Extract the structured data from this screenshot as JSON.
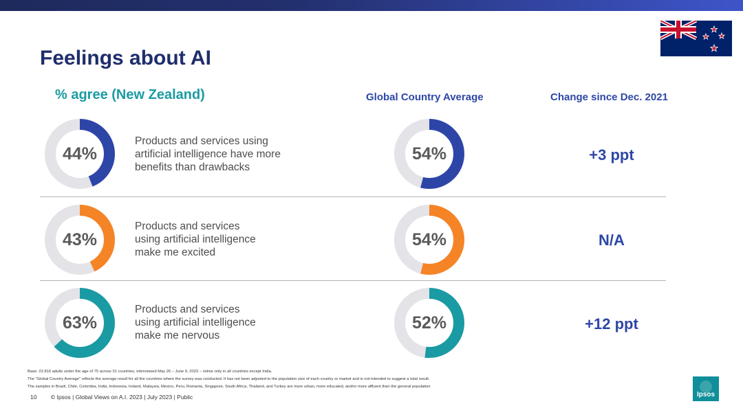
{
  "header": {
    "title": "Feelings about AI",
    "col_nz": "% agree (New Zealand)",
    "col_global": "Global Country Average",
    "col_change": "Change since Dec. 2021"
  },
  "chart_data": {
    "type": "donut",
    "title": "Feelings about AI",
    "categories": [
      "Products and services using artificial intelligence have more benefits than drawbacks",
      "Products and services using artificial intelligence make me excited",
      "Products and services using artificial intelligence make me nervous"
    ],
    "series": [
      {
        "name": "% agree (New Zealand)",
        "values": [
          44,
          43,
          63
        ]
      },
      {
        "name": "Global Country Average",
        "values": [
          54,
          54,
          52
        ]
      }
    ],
    "change_since_dec_2021": [
      "+3 ppt",
      "N/A",
      "+12 ppt"
    ],
    "ylim": [
      0,
      100
    ]
  },
  "rows": [
    {
      "nz_label": "44%",
      "global_label": "54%",
      "lines": [
        "Products and services using",
        "artificial intelligence have more",
        "benefits than drawbacks"
      ],
      "change": "+3 ppt",
      "color": "#2e45a8"
    },
    {
      "nz_label": "43%",
      "global_label": "54%",
      "lines": [
        "Products and services",
        "using artificial intelligence",
        "make me excited"
      ],
      "change": "N/A",
      "color": "#f58426"
    },
    {
      "nz_label": "63%",
      "global_label": "52%",
      "lines": [
        "Products and services",
        "using artificial intelligence",
        "make me nervous"
      ],
      "change": "+12 ppt",
      "color": "#1a9ba3"
    }
  ],
  "colors": {
    "track": "#e3e3e8",
    "title": "#1f2d6b",
    "accent_teal": "#1a9ba3",
    "accent_blue": "#2d47a6"
  },
  "footnotes": [
    "Base: 22,816 adults under the age of 75 across 31 countries, interviewed May 26 – June 9, 2023 – online only in all countries except India.",
    "The “Global Country Average” reflects the average result for all the countries where the survey was conducted. It has not been adjusted to the population size of each country or market and is not intended to suggest a total result.",
    "The samples in Brazil, Chile, Colombia, India, Indonesia, Ireland, Malaysia, Mexico, Peru, Romania, Singapore, South Africa, Thailand, and Turkey are more urban, more educated, and/or more affluent than the general population"
  ],
  "footer": {
    "page_number": "10",
    "text": "© Ipsos | Global Views on A.I. 2023 | July 2023 | Public"
  },
  "logo": {
    "text": "Ipsos",
    "icon": "ipsos-logo-icon"
  },
  "flag": {
    "icon": "new-zealand-flag-icon"
  }
}
